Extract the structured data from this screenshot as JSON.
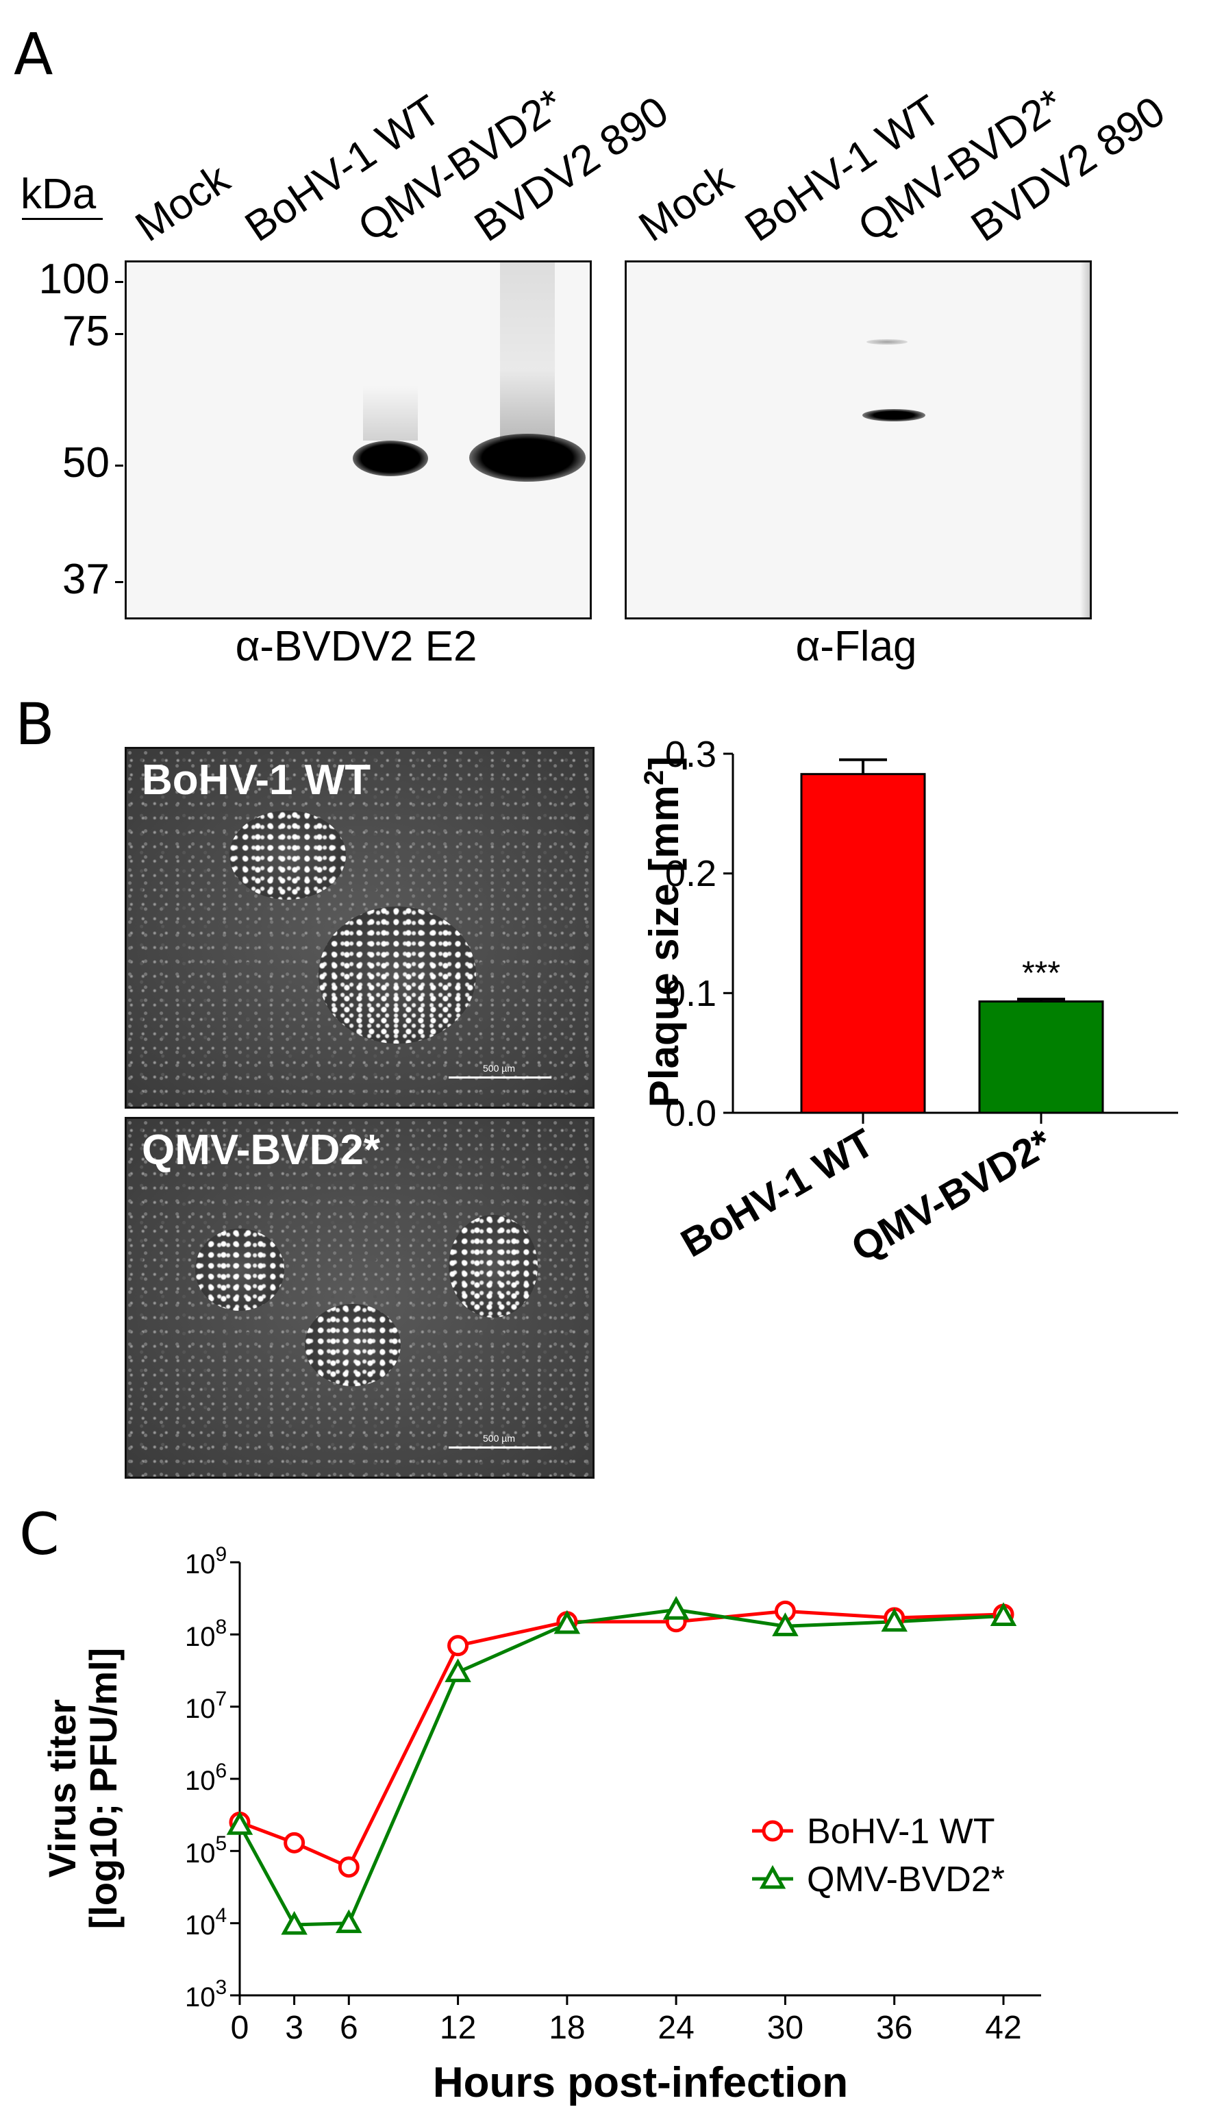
{
  "panels": {
    "a": "A",
    "b": "B",
    "c": "C"
  },
  "western_blot": {
    "unit": "kDa",
    "lanes": [
      "Mock",
      "BoHV-1 WT",
      "QMV-BVD2*",
      "BVDV2 890"
    ],
    "markers": [
      "100",
      "75",
      "50",
      "37"
    ],
    "left_blot_label": "α-BVDV2 E2",
    "right_blot_label": "α-Flag"
  },
  "micrographs": {
    "top_label": "BoHV-1 WT",
    "bottom_label": "QMV-BVD2*",
    "scale_text": "500 µm"
  },
  "chart_data": [
    {
      "type": "bar",
      "categories": [
        "BoHV-1 WT",
        "QMV-BVD2*"
      ],
      "values": [
        0.283,
        0.093
      ],
      "errors": [
        0.012,
        0.002
      ],
      "colors": [
        "#ff0000",
        "#008000"
      ],
      "annotations": [
        "",
        "***"
      ],
      "ylabel": "Plaque size [mm²]",
      "ylabel_main": "Plaque size [mm",
      "ylabel_sup": "2",
      "ylabel_end": "]",
      "ylim": [
        0,
        0.3
      ],
      "yticks": [
        "0.0",
        "0.1",
        "0.2",
        "0.3"
      ],
      "grid": false
    },
    {
      "type": "line",
      "x": [
        0,
        3,
        6,
        12,
        18,
        24,
        30,
        36,
        42
      ],
      "xticks": [
        "0",
        "3",
        "6",
        "12",
        "18",
        "24",
        "30",
        "36",
        "42"
      ],
      "series": [
        {
          "name": "BoHV-1 WT",
          "values": [
            250000,
            130000,
            60000,
            70000000,
            150000000,
            150000000,
            210000000,
            170000000,
            190000000
          ],
          "color": "#ff0000",
          "marker": "circle"
        },
        {
          "name": "QMV-BVD2*",
          "values": [
            230000,
            9500,
            10000,
            30000000,
            140000000,
            220000000,
            130000000,
            150000000,
            180000000
          ],
          "color": "#008000",
          "marker": "triangle"
        }
      ],
      "xlabel": "Hours post-infection",
      "ylabel_line1": "Virus titer",
      "ylabel_line2": "[log10; PFU/ml]",
      "ytick_base": "10",
      "ytick_exponents": [
        "3",
        "4",
        "5",
        "6",
        "7",
        "8",
        "9"
      ],
      "yscale": "log",
      "ylim": [
        1000,
        1000000000
      ],
      "xlim": [
        0,
        42
      ],
      "legend_position": "lower-right",
      "grid": false
    }
  ]
}
